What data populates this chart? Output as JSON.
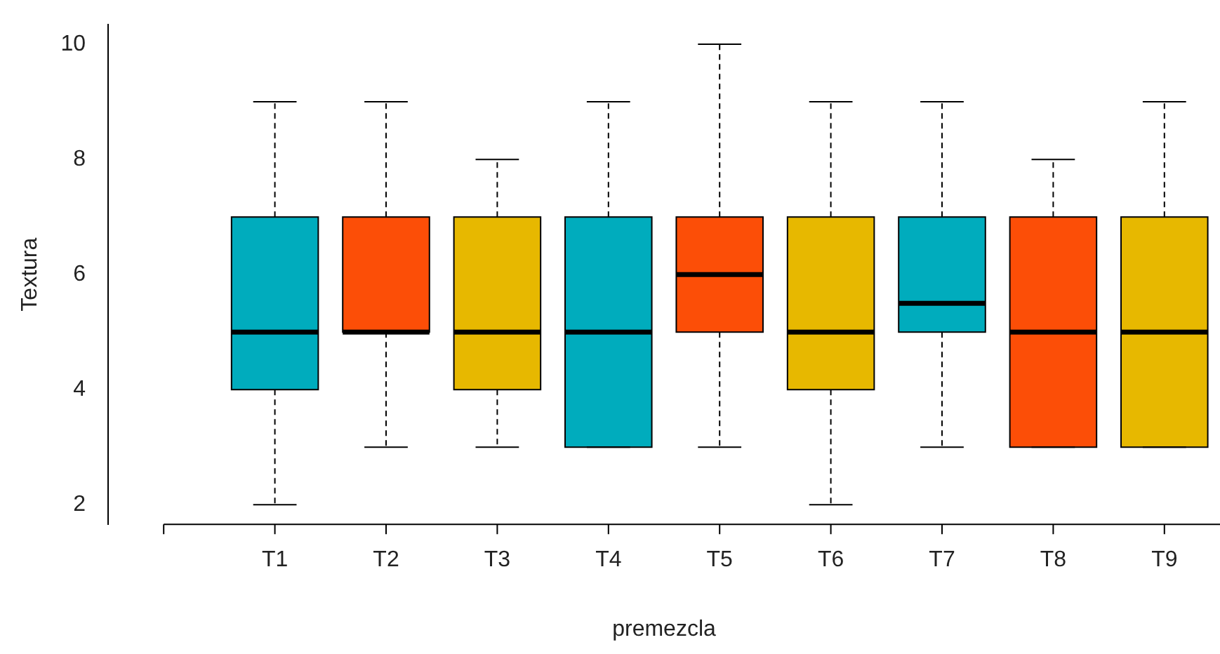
{
  "chart_data": {
    "type": "box",
    "xlabel": "premezcla",
    "ylabel": "Textura",
    "categories": [
      null,
      "T1",
      "T2",
      "T3",
      "T4",
      "T5",
      "T6",
      "T7",
      "T8",
      "T9"
    ],
    "boxes": [
      null,
      {
        "low": 2,
        "q1": 4,
        "median": 5,
        "q3": 7,
        "high": 9
      },
      {
        "low": 3,
        "q1": 5,
        "median": 5,
        "q3": 7,
        "high": 9
      },
      {
        "low": 3,
        "q1": 4,
        "median": 5,
        "q3": 7,
        "high": 8
      },
      {
        "low": 3,
        "q1": 3,
        "median": 5,
        "q3": 7,
        "high": 9
      },
      {
        "low": 3,
        "q1": 5,
        "median": 6,
        "q3": 7,
        "high": 10
      },
      {
        "low": 2,
        "q1": 4,
        "median": 5,
        "q3": 7,
        "high": 9
      },
      {
        "low": 3,
        "q1": 5,
        "median": 5.5,
        "q3": 7,
        "high": 9
      },
      {
        "low": 3,
        "q1": 3,
        "median": 5,
        "q3": 7,
        "high": 8
      },
      {
        "low": 3,
        "q1": 3,
        "median": 5,
        "q3": 7,
        "high": 9
      }
    ],
    "colors": [
      null,
      "#00acbd",
      "#fc4e07",
      "#e7b800",
      "#00acbd",
      "#fc4e07",
      "#e7b800",
      "#00acbd",
      "#fc4e07",
      "#e7b800"
    ],
    "ylim": [
      1.66,
      10.34
    ],
    "yticks": [
      2,
      4,
      6,
      8,
      10
    ],
    "grid": false,
    "legend": false
  }
}
